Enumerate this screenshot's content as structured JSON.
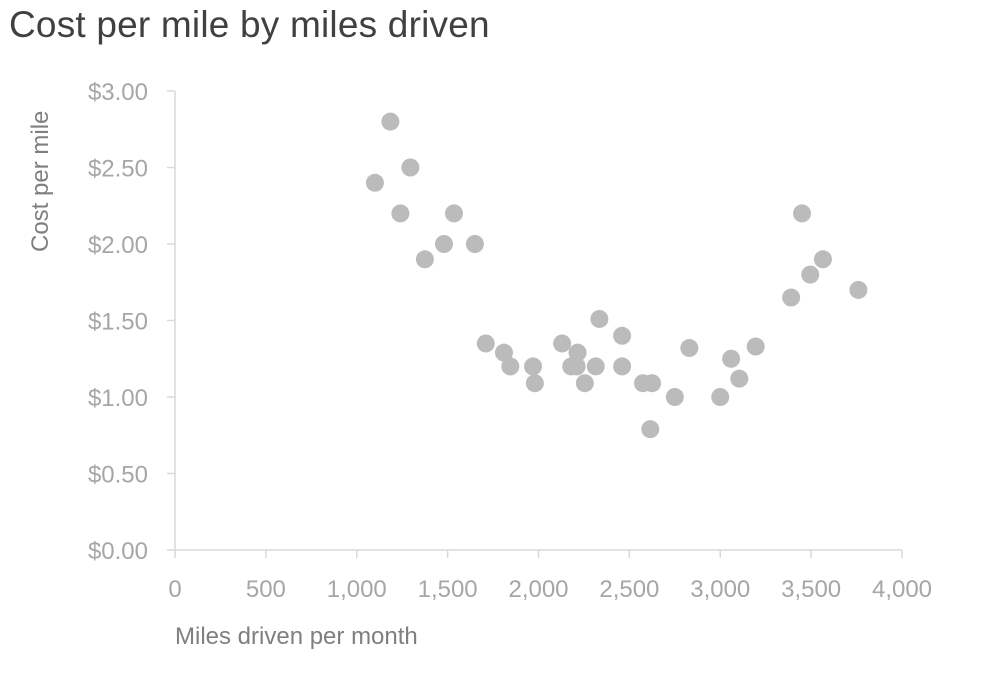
{
  "chart": {
    "title": "Cost per mile by miles driven"
  },
  "colors": {
    "marker": "#bbbbbb",
    "axis_line": "#d9d9d9",
    "tick_label": "#a6a6a6",
    "axis_title": "#7f7f7f",
    "title": "#404040"
  },
  "chart_data": {
    "type": "scatter",
    "title": "Cost per mile by miles driven",
    "xlabel": "Miles driven per month",
    "ylabel": "Cost per mile",
    "xlim": [
      0,
      4000
    ],
    "ylim": [
      0,
      3
    ],
    "x_ticks": [
      "0",
      "500",
      "1,000",
      "1,500",
      "2,000",
      "2,500",
      "3,000",
      "3,500",
      "4,000"
    ],
    "y_ticks": [
      "$0.00",
      "$0.50",
      "$1.00",
      "$1.50",
      "$2.00",
      "$2.50",
      "$3.00"
    ],
    "grid": false,
    "legend": "none",
    "series": [
      {
        "name": "Cost per mile",
        "points": [
          {
            "x": 1100,
            "y": 2.4
          },
          {
            "x": 1185,
            "y": 2.8
          },
          {
            "x": 1295,
            "y": 2.5
          },
          {
            "x": 1240,
            "y": 2.2
          },
          {
            "x": 1375,
            "y": 1.9
          },
          {
            "x": 1480,
            "y": 2.0
          },
          {
            "x": 1535,
            "y": 2.2
          },
          {
            "x": 1650,
            "y": 2.0
          },
          {
            "x": 1710,
            "y": 1.35
          },
          {
            "x": 1810,
            "y": 1.29
          },
          {
            "x": 1845,
            "y": 1.2
          },
          {
            "x": 1970,
            "y": 1.2
          },
          {
            "x": 1980,
            "y": 1.09
          },
          {
            "x": 2130,
            "y": 1.35
          },
          {
            "x": 2180,
            "y": 1.2
          },
          {
            "x": 2215,
            "y": 1.29
          },
          {
            "x": 2210,
            "y": 1.2
          },
          {
            "x": 2255,
            "y": 1.09
          },
          {
            "x": 2315,
            "y": 1.2
          },
          {
            "x": 2335,
            "y": 1.51
          },
          {
            "x": 2460,
            "y": 1.4
          },
          {
            "x": 2460,
            "y": 1.2
          },
          {
            "x": 2575,
            "y": 1.09
          },
          {
            "x": 2625,
            "y": 1.09
          },
          {
            "x": 2615,
            "y": 0.79
          },
          {
            "x": 2750,
            "y": 1.0
          },
          {
            "x": 2830,
            "y": 1.32
          },
          {
            "x": 3000,
            "y": 1.0
          },
          {
            "x": 3060,
            "y": 1.25
          },
          {
            "x": 3105,
            "y": 1.12
          },
          {
            "x": 3195,
            "y": 1.33
          },
          {
            "x": 3390,
            "y": 1.65
          },
          {
            "x": 3450,
            "y": 2.2
          },
          {
            "x": 3495,
            "y": 1.8
          },
          {
            "x": 3565,
            "y": 1.9
          },
          {
            "x": 3760,
            "y": 1.7
          }
        ]
      }
    ]
  }
}
